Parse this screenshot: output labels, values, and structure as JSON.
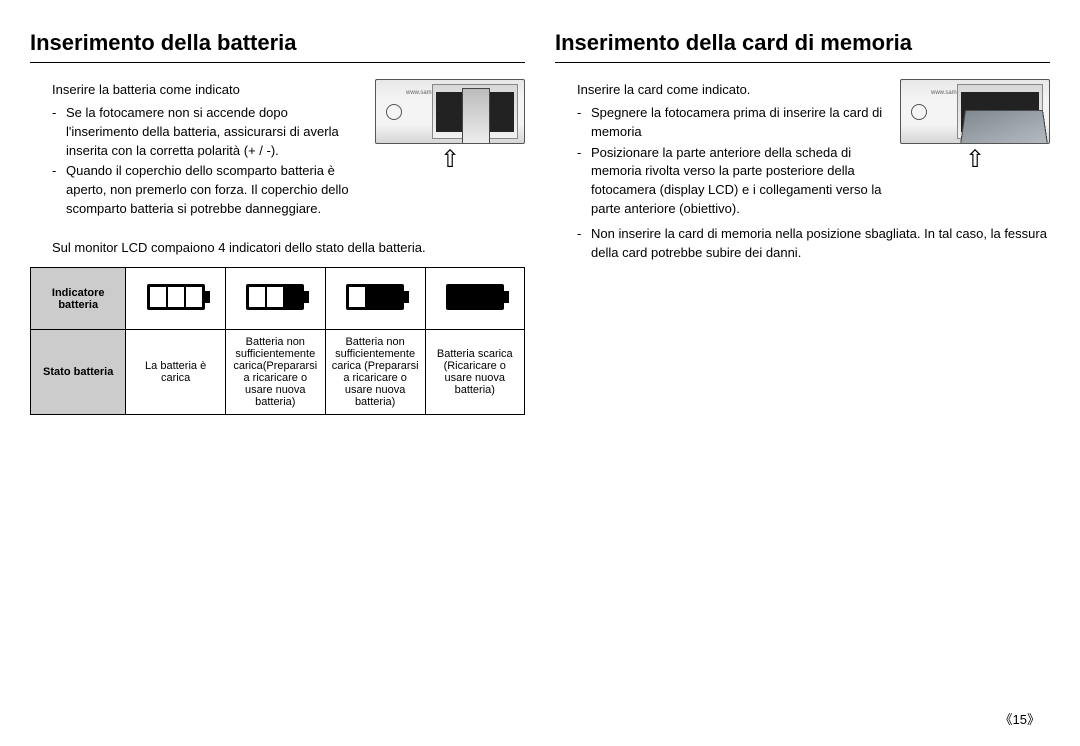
{
  "left": {
    "heading": "Inserimento della batteria",
    "lead": "Inserire la batteria come indicato",
    "bullets": [
      "Se la fotocamere non si accende dopo l'inserimento della batteria, assicurarsi di averla inserita con la corretta polarità (+ / -).",
      "Quando il coperchio dello scomparto batteria è aperto, non premerlo con forza. Il coperchio dello scomparto batteria si potrebbe danneggiare."
    ],
    "caption": "Sul monitor LCD compaiono 4 indicatori dello stato della batteria.",
    "illus_url": "www.samsungcamera.com",
    "arrow": "⇧",
    "table": {
      "row1_label": "Indicatore batteria",
      "row2_label": "Stato batteria",
      "row2_cells": [
        "La batteria è carica",
        "Batteria non sufficientemente carica(Prepararsi a ricaricare o usare nuova batteria)",
        "Batteria non sufficientemente carica (Prepararsi a ricaricare o usare nuova batteria)",
        "Batteria scarica (Ricaricare o usare nuova batteria)"
      ],
      "icon_levels": [
        3,
        2,
        1,
        0
      ]
    }
  },
  "right": {
    "heading": "Inserimento della card di memoria",
    "lead": "Inserire la card come indicato.",
    "bullets": [
      "Spegnere la fotocamera prima di inserire la card di memoria",
      "Posizionare la parte anteriore della scheda di memoria rivolta verso la parte posteriore della fotocamera (display LCD) e i collegamenti verso la parte anteriore (obiettivo).",
      "Non inserire la card di memoria nella posizione sbagliata. In tal caso, la fessura della card potrebbe subire dei danni."
    ],
    "illus_url": "www.samsungcamera.com",
    "arrow": "⇧"
  },
  "page_number": "《15》",
  "colors": {
    "text": "#000000",
    "background": "#ffffff",
    "table_header_bg": "#cccccc",
    "border": "#000000"
  },
  "typography": {
    "heading_fontsize": 22,
    "body_fontsize": 13,
    "table_fontsize": 11
  }
}
